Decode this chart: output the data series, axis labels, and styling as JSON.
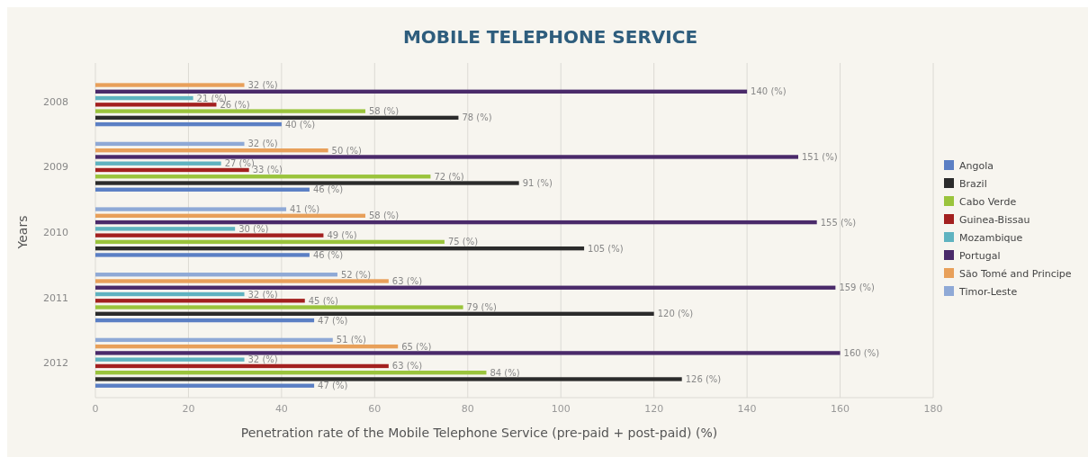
{
  "chart_data": {
    "type": "bar",
    "title": "MOBILE TELEPHONE SERVICE",
    "xlabel": "Penetration rate of the Mobile Telephone Service (pre-paid + post-paid) (%)",
    "ylabel": "Years",
    "orientation": "horizontal",
    "categories": [
      "2008",
      "2009",
      "2010",
      "2011",
      "2012"
    ],
    "series": [
      {
        "name": "Angola",
        "color": "#5b7fc4",
        "values": [
          40,
          46,
          46,
          47,
          47
        ],
        "value_labels": [
          "40 (%)",
          "46 (%)",
          "46 (%)",
          "47 (%)",
          "47 (%)"
        ]
      },
      {
        "name": "Brazil",
        "color": "#2b2b2b",
        "values": [
          78,
          91,
          105,
          120,
          126
        ],
        "value_labels": [
          "78 (%)",
          "91 (%)",
          "105 (%)",
          "120 (%)",
          "126 (%)"
        ]
      },
      {
        "name": "Cabo Verde",
        "color": "#9ac43c",
        "values": [
          58,
          72,
          75,
          79,
          84
        ],
        "value_labels": [
          "58 (%)",
          "72 (%)",
          "75 (%)",
          "79 (%)",
          "84 (%)"
        ]
      },
      {
        "name": "Guinea-Bissau",
        "color": "#a3201f",
        "values": [
          26,
          33,
          49,
          45,
          63
        ],
        "value_labels": [
          "26 (%)",
          "33 (%)",
          "49 (%)",
          "45 (%)",
          "63 (%)"
        ]
      },
      {
        "name": "Mozambique",
        "color": "#5fb3c0",
        "values": [
          21,
          27,
          30,
          32,
          32
        ],
        "value_labels": [
          "21 (%)",
          "27 (%)",
          "30 (%)",
          "32 (%)",
          "32 (%)"
        ]
      },
      {
        "name": "Portugal",
        "color": "#4a2a6a",
        "values": [
          140,
          151,
          155,
          159,
          160
        ],
        "value_labels": [
          "140 (%)",
          "151 (%)",
          "155 (%)",
          "159 (%)",
          "160 (%)"
        ]
      },
      {
        "name": "São Tomé and Principe",
        "color": "#e8a05a",
        "values": [
          32,
          50,
          58,
          63,
          65
        ],
        "value_labels": [
          "32 (%)",
          "50 (%)",
          "58 (%)",
          "63 (%)",
          "65 (%)"
        ]
      },
      {
        "name": "Timor-Leste",
        "color": "#8fa9d6",
        "values": [
          null,
          32,
          41,
          52,
          51
        ],
        "value_labels": [
          null,
          "32 (%)",
          "41 (%)",
          "52 (%)",
          "51 (%)"
        ]
      }
    ],
    "xlim": [
      0,
      180
    ],
    "xticks": [
      0,
      20,
      40,
      60,
      80,
      100,
      120,
      140,
      160,
      180
    ],
    "grid": "x",
    "legend": "right"
  }
}
